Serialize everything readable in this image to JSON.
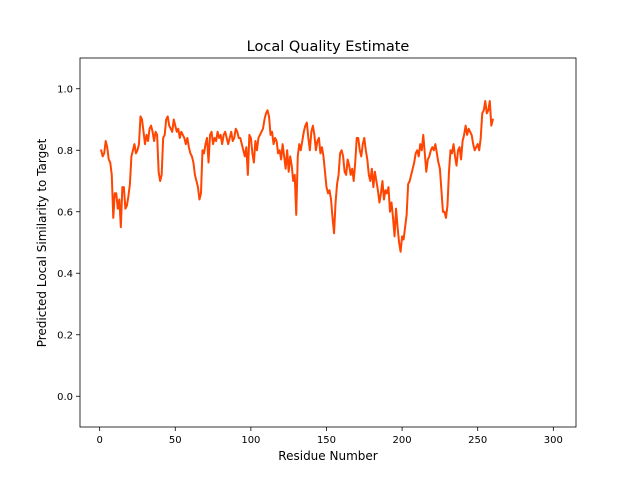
{
  "chart_data": {
    "type": "line",
    "title": "Local Quality Estimate",
    "xlabel": "Residue Number",
    "ylabel": "Predicted Local Similarity to Target",
    "xlim": [
      -13,
      315
    ],
    "ylim": [
      -0.1,
      1.1
    ],
    "xticks": [
      0,
      50,
      100,
      150,
      200,
      250,
      300
    ],
    "yticks": [
      0.0,
      0.2,
      0.4,
      0.6,
      0.8,
      1.0
    ],
    "xtick_labels": [
      "0",
      "50",
      "100",
      "150",
      "200",
      "250",
      "300"
    ],
    "ytick_labels": [
      "0.0",
      "0.2",
      "0.4",
      "0.6",
      "0.8",
      "1.0"
    ],
    "grid": false,
    "line_color": "#ff4500",
    "series": [
      {
        "points": [
          [
            1,
            0.8
          ],
          [
            2,
            0.78
          ],
          [
            3,
            0.79
          ],
          [
            4,
            0.83
          ],
          [
            5,
            0.81
          ],
          [
            6,
            0.77
          ],
          [
            7,
            0.76
          ],
          [
            8,
            0.72
          ],
          [
            9,
            0.58
          ],
          [
            10,
            0.66
          ],
          [
            11,
            0.66
          ],
          [
            12,
            0.61
          ],
          [
            13,
            0.64
          ],
          [
            14,
            0.55
          ],
          [
            15,
            0.68
          ],
          [
            16,
            0.68
          ],
          [
            17,
            0.61
          ],
          [
            18,
            0.62
          ],
          [
            19,
            0.65
          ],
          [
            20,
            0.69
          ],
          [
            21,
            0.78
          ],
          [
            22,
            0.8
          ],
          [
            23,
            0.82
          ],
          [
            24,
            0.79
          ],
          [
            25,
            0.8
          ],
          [
            26,
            0.82
          ],
          [
            27,
            0.91
          ],
          [
            28,
            0.9
          ],
          [
            29,
            0.86
          ],
          [
            30,
            0.82
          ],
          [
            31,
            0.85
          ],
          [
            32,
            0.83
          ],
          [
            33,
            0.87
          ],
          [
            34,
            0.88
          ],
          [
            35,
            0.86
          ],
          [
            36,
            0.83
          ],
          [
            37,
            0.86
          ],
          [
            38,
            0.85
          ],
          [
            39,
            0.73
          ],
          [
            40,
            0.7
          ],
          [
            41,
            0.72
          ],
          [
            42,
            0.84
          ],
          [
            43,
            0.85
          ],
          [
            44,
            0.9
          ],
          [
            45,
            0.91
          ],
          [
            46,
            0.88
          ],
          [
            47,
            0.87
          ],
          [
            48,
            0.86
          ],
          [
            49,
            0.9
          ],
          [
            50,
            0.88
          ],
          [
            51,
            0.86
          ],
          [
            52,
            0.87
          ],
          [
            53,
            0.84
          ],
          [
            54,
            0.86
          ],
          [
            55,
            0.85
          ],
          [
            56,
            0.84
          ],
          [
            57,
            0.82
          ],
          [
            58,
            0.84
          ],
          [
            59,
            0.81
          ],
          [
            60,
            0.79
          ],
          [
            61,
            0.78
          ],
          [
            62,
            0.76
          ],
          [
            63,
            0.72
          ],
          [
            64,
            0.7
          ],
          [
            65,
            0.68
          ],
          [
            66,
            0.64
          ],
          [
            67,
            0.66
          ],
          [
            68,
            0.8
          ],
          [
            69,
            0.79
          ],
          [
            70,
            0.82
          ],
          [
            71,
            0.84
          ],
          [
            72,
            0.76
          ],
          [
            73,
            0.85
          ],
          [
            74,
            0.86
          ],
          [
            75,
            0.82
          ],
          [
            76,
            0.84
          ],
          [
            77,
            0.83
          ],
          [
            78,
            0.86
          ],
          [
            79,
            0.84
          ],
          [
            80,
            0.85
          ],
          [
            81,
            0.82
          ],
          [
            82,
            0.85
          ],
          [
            83,
            0.86
          ],
          [
            84,
            0.84
          ],
          [
            85,
            0.82
          ],
          [
            86,
            0.84
          ],
          [
            87,
            0.86
          ],
          [
            88,
            0.83
          ],
          [
            89,
            0.84
          ],
          [
            90,
            0.87
          ],
          [
            91,
            0.86
          ],
          [
            92,
            0.84
          ],
          [
            93,
            0.84
          ],
          [
            94,
            0.82
          ],
          [
            95,
            0.8
          ],
          [
            96,
            0.78
          ],
          [
            97,
            0.81
          ],
          [
            98,
            0.72
          ],
          [
            99,
            0.85
          ],
          [
            100,
            0.84
          ],
          [
            101,
            0.79
          ],
          [
            102,
            0.76
          ],
          [
            103,
            0.83
          ],
          [
            104,
            0.8
          ],
          [
            105,
            0.84
          ],
          [
            106,
            0.85
          ],
          [
            107,
            0.86
          ],
          [
            108,
            0.87
          ],
          [
            109,
            0.9
          ],
          [
            110,
            0.92
          ],
          [
            111,
            0.93
          ],
          [
            112,
            0.91
          ],
          [
            113,
            0.85
          ],
          [
            114,
            0.86
          ],
          [
            115,
            0.82
          ],
          [
            116,
            0.84
          ],
          [
            117,
            0.83
          ],
          [
            118,
            0.79
          ],
          [
            119,
            0.8
          ],
          [
            120,
            0.77
          ],
          [
            121,
            0.82
          ],
          [
            122,
            0.78
          ],
          [
            123,
            0.74
          ],
          [
            124,
            0.8
          ],
          [
            125,
            0.73
          ],
          [
            126,
            0.78
          ],
          [
            127,
            0.75
          ],
          [
            128,
            0.7
          ],
          [
            129,
            0.72
          ],
          [
            130,
            0.59
          ],
          [
            131,
            0.78
          ],
          [
            132,
            0.82
          ],
          [
            133,
            0.8
          ],
          [
            134,
            0.83
          ],
          [
            135,
            0.86
          ],
          [
            136,
            0.88
          ],
          [
            137,
            0.89
          ],
          [
            138,
            0.84
          ],
          [
            139,
            0.8
          ],
          [
            140,
            0.86
          ],
          [
            141,
            0.88
          ],
          [
            142,
            0.85
          ],
          [
            143,
            0.8
          ],
          [
            144,
            0.83
          ],
          [
            145,
            0.84
          ],
          [
            146,
            0.79
          ],
          [
            147,
            0.81
          ],
          [
            148,
            0.78
          ],
          [
            149,
            0.73
          ],
          [
            150,
            0.68
          ],
          [
            151,
            0.66
          ],
          [
            152,
            0.67
          ],
          [
            153,
            0.64
          ],
          [
            154,
            0.58
          ],
          [
            155,
            0.53
          ],
          [
            156,
            0.63
          ],
          [
            157,
            0.69
          ],
          [
            158,
            0.72
          ],
          [
            159,
            0.79
          ],
          [
            160,
            0.8
          ],
          [
            161,
            0.78
          ],
          [
            162,
            0.73
          ],
          [
            163,
            0.72
          ],
          [
            164,
            0.77
          ],
          [
            165,
            0.75
          ],
          [
            166,
            0.72
          ],
          [
            167,
            0.74
          ],
          [
            168,
            0.7
          ],
          [
            169,
            0.76
          ],
          [
            170,
            0.84
          ],
          [
            171,
            0.84
          ],
          [
            172,
            0.8
          ],
          [
            173,
            0.78
          ],
          [
            174,
            0.82
          ],
          [
            175,
            0.84
          ],
          [
            176,
            0.8
          ],
          [
            177,
            0.77
          ],
          [
            178,
            0.72
          ],
          [
            179,
            0.7
          ],
          [
            180,
            0.74
          ],
          [
            181,
            0.68
          ],
          [
            182,
            0.73
          ],
          [
            183,
            0.7
          ],
          [
            184,
            0.67
          ],
          [
            185,
            0.63
          ],
          [
            186,
            0.66
          ],
          [
            187,
            0.7
          ],
          [
            188,
            0.64
          ],
          [
            189,
            0.67
          ],
          [
            190,
            0.66
          ],
          [
            191,
            0.68
          ],
          [
            192,
            0.6
          ],
          [
            193,
            0.63
          ],
          [
            194,
            0.58
          ],
          [
            195,
            0.52
          ],
          [
            196,
            0.61
          ],
          [
            197,
            0.55
          ],
          [
            198,
            0.5
          ],
          [
            199,
            0.47
          ],
          [
            200,
            0.52
          ],
          [
            201,
            0.51
          ],
          [
            202,
            0.55
          ],
          [
            203,
            0.59
          ],
          [
            204,
            0.69
          ],
          [
            205,
            0.7
          ],
          [
            206,
            0.72
          ],
          [
            207,
            0.74
          ],
          [
            208,
            0.76
          ],
          [
            209,
            0.79
          ],
          [
            210,
            0.8
          ],
          [
            211,
            0.78
          ],
          [
            212,
            0.82
          ],
          [
            213,
            0.8
          ],
          [
            214,
            0.85
          ],
          [
            215,
            0.79
          ],
          [
            216,
            0.73
          ],
          [
            217,
            0.77
          ],
          [
            218,
            0.78
          ],
          [
            219,
            0.8
          ],
          [
            220,
            0.81
          ],
          [
            221,
            0.8
          ],
          [
            222,
            0.82
          ],
          [
            223,
            0.79
          ],
          [
            224,
            0.76
          ],
          [
            225,
            0.74
          ],
          [
            226,
            0.67
          ],
          [
            227,
            0.6
          ],
          [
            228,
            0.6
          ],
          [
            229,
            0.58
          ],
          [
            230,
            0.62
          ],
          [
            231,
            0.73
          ],
          [
            232,
            0.8
          ],
          [
            233,
            0.79
          ],
          [
            234,
            0.82
          ],
          [
            235,
            0.78
          ],
          [
            236,
            0.75
          ],
          [
            237,
            0.8
          ],
          [
            238,
            0.81
          ],
          [
            239,
            0.77
          ],
          [
            240,
            0.83
          ],
          [
            241,
            0.85
          ],
          [
            242,
            0.88
          ],
          [
            243,
            0.85
          ],
          [
            244,
            0.87
          ],
          [
            245,
            0.86
          ],
          [
            246,
            0.85
          ],
          [
            247,
            0.82
          ],
          [
            248,
            0.8
          ],
          [
            249,
            0.81
          ],
          [
            250,
            0.82
          ],
          [
            251,
            0.8
          ],
          [
            252,
            0.84
          ],
          [
            253,
            0.92
          ],
          [
            254,
            0.93
          ],
          [
            255,
            0.96
          ],
          [
            256,
            0.92
          ],
          [
            257,
            0.93
          ],
          [
            258,
            0.96
          ],
          [
            259,
            0.88
          ],
          [
            260,
            0.9
          ]
        ]
      }
    ]
  }
}
